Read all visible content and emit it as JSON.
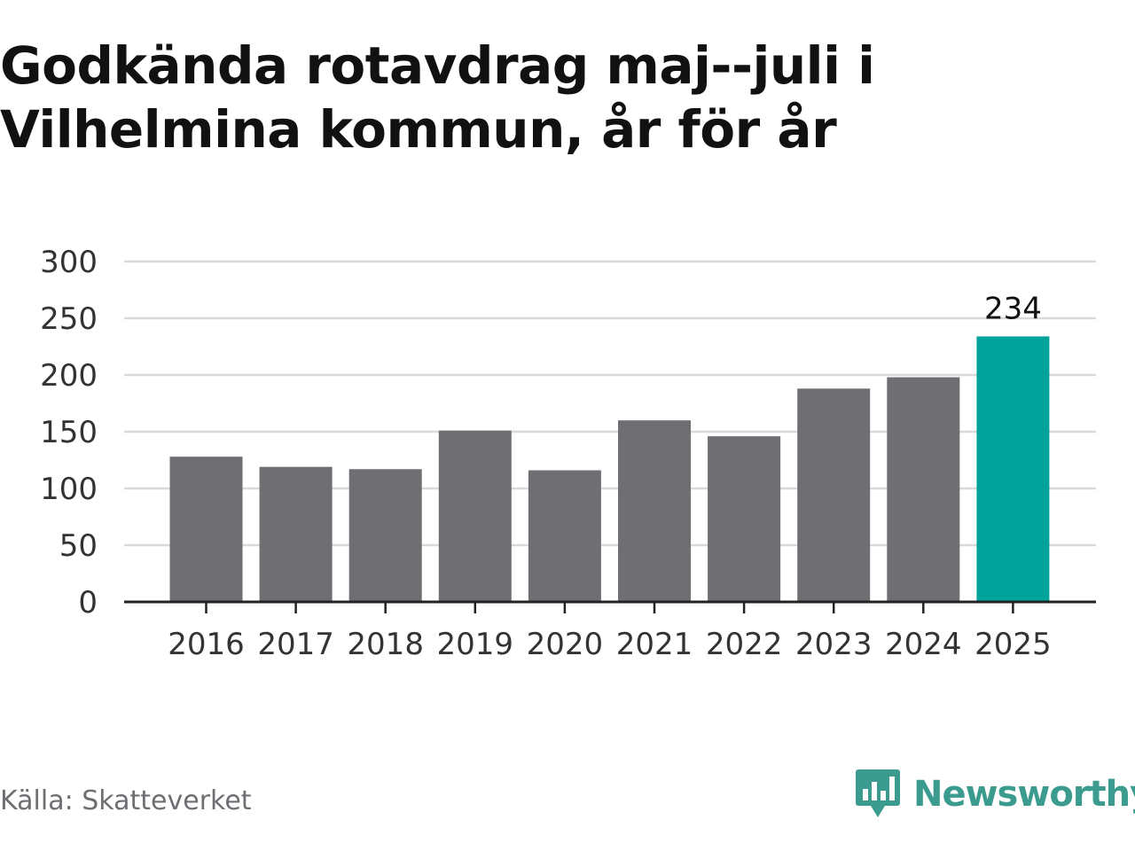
{
  "title_lines": [
    "Godkända rotavdrag maj--juli i",
    "Vilhelmina kommun, år för år"
  ],
  "source": "Källa: Skatteverket",
  "brand": {
    "name": "Newsworthy",
    "icon": "newsworthy-logo-icon",
    "color": "#3b9b8f"
  },
  "colors": {
    "bar": "#6f6e73",
    "highlight": "#00a39a",
    "grid": "#d9d9d9",
    "axis": "#222222",
    "tick_text": "#333333"
  },
  "chart_data": {
    "type": "bar",
    "title": "Godkända rotavdrag maj--juli i Vilhelmina kommun, år för år",
    "xlabel": "",
    "ylabel": "",
    "categories": [
      "2016",
      "2017",
      "2018",
      "2019",
      "2020",
      "2021",
      "2022",
      "2023",
      "2024",
      "2025"
    ],
    "values": [
      128,
      119,
      117,
      151,
      116,
      160,
      146,
      188,
      198,
      234
    ],
    "ylim": [
      0,
      300
    ],
    "yticks": [
      0,
      50,
      100,
      150,
      200,
      250,
      300
    ],
    "grid": true,
    "highlight_index": 9,
    "data_labels": [
      {
        "index": 9,
        "text": "234"
      }
    ]
  }
}
